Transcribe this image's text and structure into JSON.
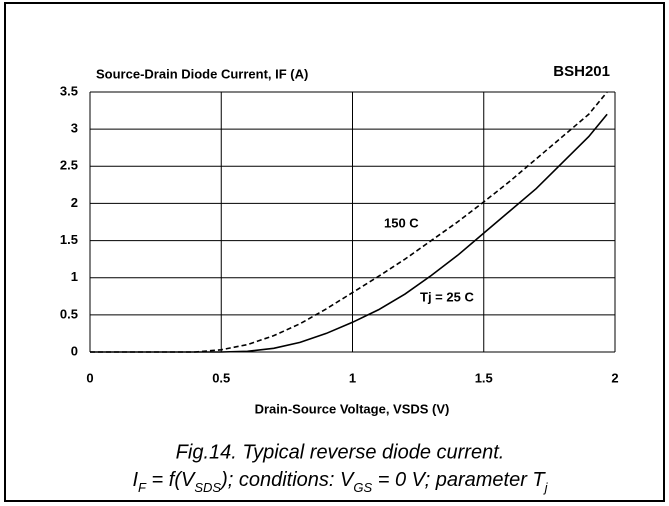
{
  "chart_data": {
    "type": "line",
    "title": "Source-Drain Diode Current, IF (A)",
    "label": "BSH201",
    "xlabel": "Drain-Source Voltage, VSDS (V)",
    "x": [
      0,
      0.25,
      0.4,
      0.5,
      0.6,
      0.7,
      0.8,
      0.9,
      1.0,
      1.1,
      1.2,
      1.3,
      1.4,
      1.5,
      1.6,
      1.7,
      1.8,
      1.9,
      1.97
    ],
    "series": [
      {
        "name": "Tj = 25 C",
        "color": "#000000",
        "dash": false,
        "values": [
          0,
          0,
          0,
          0,
          0.01,
          0.05,
          0.13,
          0.25,
          0.4,
          0.57,
          0.78,
          1.03,
          1.3,
          1.6,
          1.9,
          2.2,
          2.55,
          2.9,
          3.2
        ]
      },
      {
        "name": "150 C",
        "color": "#000000",
        "dash": true,
        "values": [
          0,
          0,
          0,
          0.03,
          0.1,
          0.22,
          0.38,
          0.58,
          0.8,
          1.02,
          1.25,
          1.5,
          1.75,
          2.02,
          2.3,
          2.6,
          2.9,
          3.2,
          3.5
        ]
      }
    ],
    "xlim": [
      0,
      2
    ],
    "xticks": [
      0,
      0.5,
      1,
      1.5,
      2
    ],
    "ylim": [
      0,
      3.5
    ],
    "yticks": [
      0,
      0.5,
      1,
      1.5,
      2,
      2.5,
      3,
      3.5
    ],
    "grid": true
  },
  "caption": {
    "line1": "Fig.14.   Typical reverse diode current.",
    "line2": [
      "I",
      "F",
      " = f(V",
      "SDS",
      "); conditions: V",
      "GS",
      " = 0 V; parameter T",
      "j"
    ]
  }
}
